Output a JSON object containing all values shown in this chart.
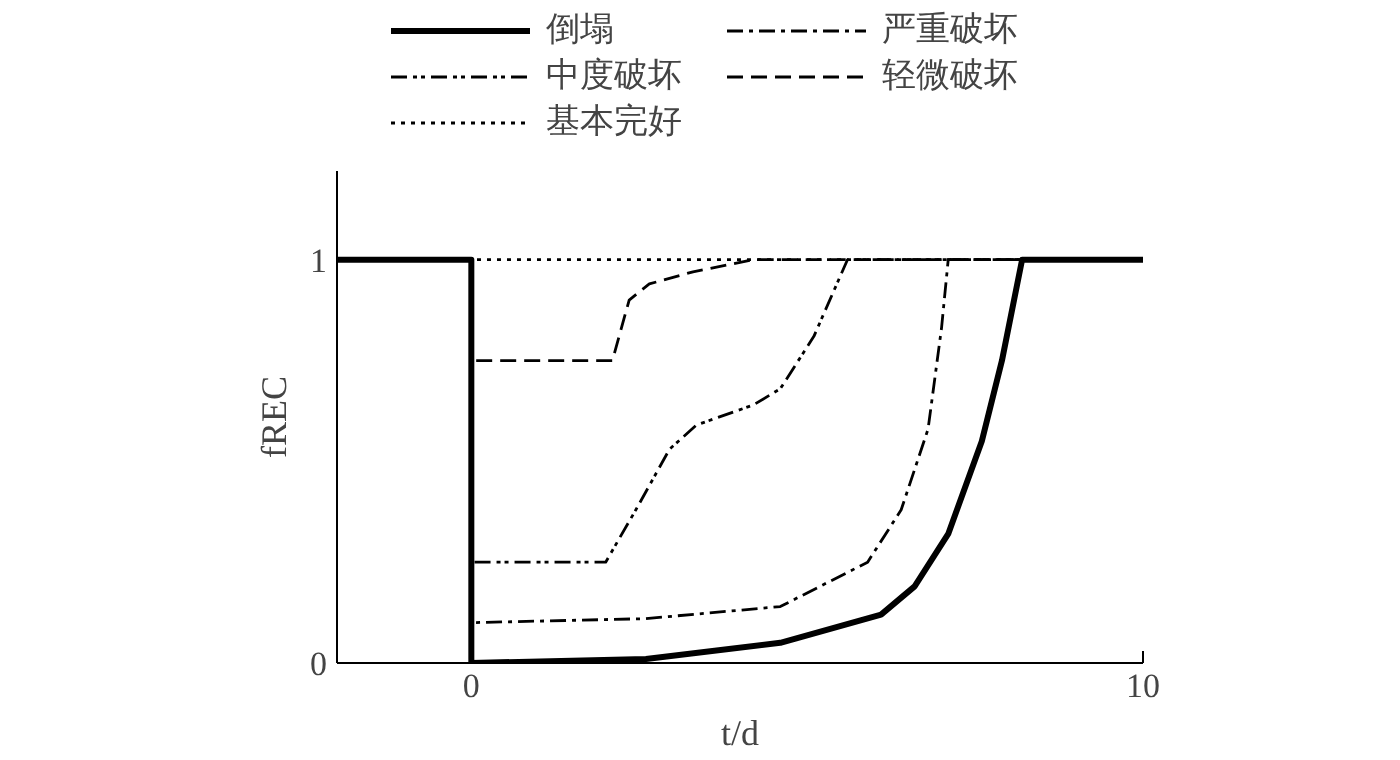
{
  "chart_data": {
    "type": "line",
    "xlabel": "t/d",
    "ylabel": "fREC",
    "xlim": [
      -2,
      10
    ],
    "ylim": [
      0,
      1.22
    ],
    "xticks": [
      0,
      10
    ],
    "yticks": [
      0,
      1
    ],
    "grid": false,
    "legend": "top",
    "marker": "none",
    "series": [
      {
        "name": "倒塌",
        "color": "#000000",
        "line_style": "solid",
        "x": [
          -2,
          0,
          0,
          2.6,
          4.6,
          6.1,
          6.6,
          7.1,
          7.6,
          7.9,
          8.2,
          10
        ],
        "values": [
          1,
          1,
          0,
          0.01,
          0.05,
          0.12,
          0.19,
          0.32,
          0.55,
          0.75,
          1,
          1
        ]
      },
      {
        "name": "严重破坏",
        "color": "#000000",
        "line_style": "dashdot",
        "x": [
          -2,
          0,
          0,
          2.6,
          4.6,
          5.9,
          6.4,
          6.8,
          7.0,
          7.1,
          10
        ],
        "values": [
          1,
          1,
          0.1,
          0.11,
          0.14,
          0.25,
          0.38,
          0.58,
          0.83,
          1,
          1
        ]
      },
      {
        "name": "中度破坏",
        "color": "#000000",
        "line_style": "dashdotdot",
        "x": [
          -2,
          0,
          0,
          2.0,
          2.45,
          2.95,
          3.35,
          4.2,
          4.6,
          5.1,
          5.6,
          10
        ],
        "values": [
          1,
          1,
          0.25,
          0.25,
          0.38,
          0.53,
          0.59,
          0.64,
          0.68,
          0.81,
          1,
          1
        ]
      },
      {
        "name": "轻微破坏",
        "color": "#000000",
        "line_style": "dashed",
        "x": [
          -2,
          0,
          0,
          2.1,
          2.35,
          2.65,
          3.3,
          4.2,
          10
        ],
        "values": [
          1,
          1,
          0.75,
          0.75,
          0.9,
          0.94,
          0.97,
          1,
          1
        ]
      },
      {
        "name": "基本完好",
        "color": "#000000",
        "line_style": "dotted",
        "x": [
          -2,
          0,
          10
        ],
        "values": [
          1,
          1,
          1
        ]
      }
    ]
  }
}
